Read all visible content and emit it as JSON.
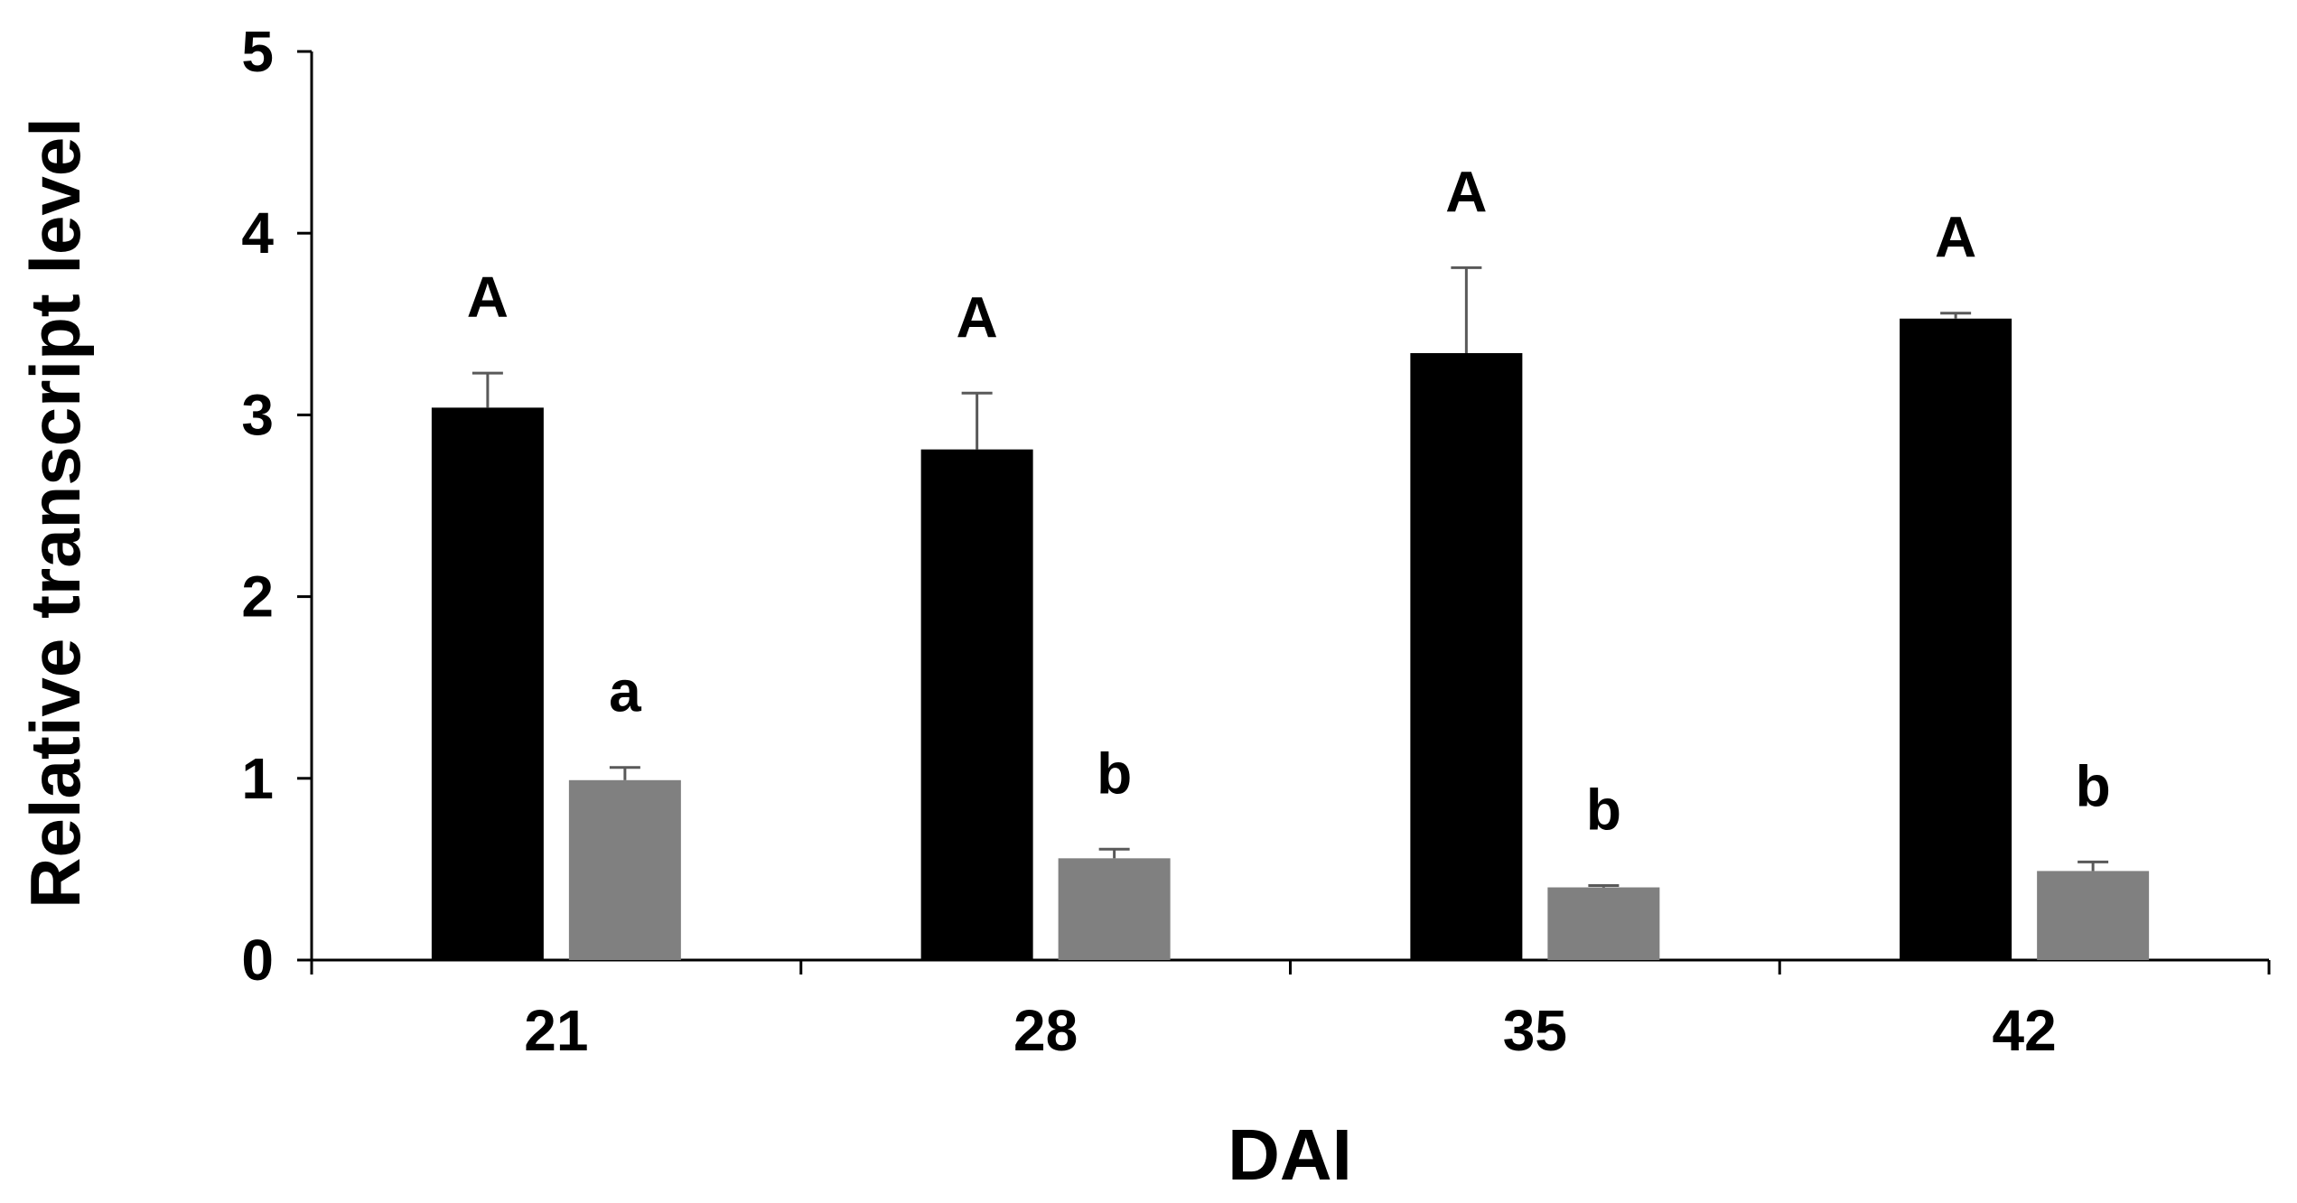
{
  "chart_data": {
    "type": "bar",
    "title": "",
    "xlabel": "DAI",
    "ylabel": "Relative transcript level",
    "ylim": [
      0,
      5
    ],
    "y_ticks": [
      "0",
      "1",
      "2",
      "3",
      "4",
      "5"
    ],
    "categories": [
      "21",
      "28",
      "35",
      "42"
    ],
    "grid": false,
    "legend": "none",
    "series": [
      {
        "color": "#000000",
        "values": [
          3.04,
          2.81,
          3.34,
          3.53
        ],
        "errors": [
          0.19,
          0.31,
          0.47,
          0.03
        ],
        "significance": [
          "A",
          "A",
          "A",
          "A"
        ]
      },
      {
        "color": "#808080",
        "values": [
          0.99,
          0.56,
          0.4,
          0.49
        ],
        "errors": [
          0.07,
          0.05,
          0.01,
          0.05
        ],
        "significance": [
          "a",
          "b",
          "b",
          "b"
        ]
      }
    ]
  }
}
